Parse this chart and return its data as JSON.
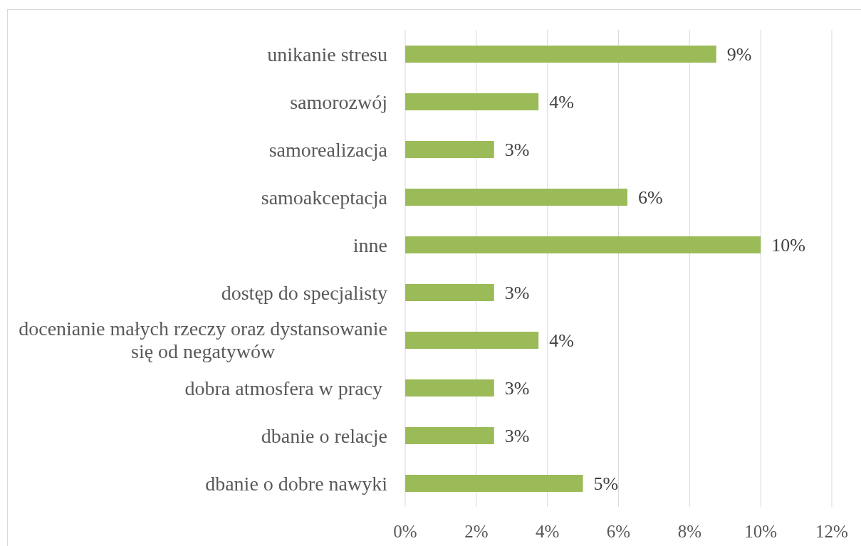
{
  "chart_data": {
    "type": "bar",
    "orientation": "horizontal",
    "categories": [
      "unikanie stresu",
      "samorozwój",
      "samorealizacja",
      "samoakceptacja",
      "inne",
      "dostęp do specjalisty",
      "docenianie małych rzeczy oraz dystansowanie się od negatywów",
      "dobra atmosfera w pracy ",
      "dbanie o relacje",
      "dbanie o dobre nawyki"
    ],
    "values": [
      8.75,
      3.75,
      2.5,
      6.25,
      10,
      2.5,
      3.75,
      2.5,
      2.5,
      5
    ],
    "value_labels": [
      "9%",
      "4%",
      "3%",
      "6%",
      "10%",
      "3%",
      "4%",
      "3%",
      "3%",
      "5%"
    ],
    "color": "#9bbb59",
    "xlim": [
      0,
      12
    ],
    "xticks": [
      {
        "value": 0,
        "label": "0%"
      },
      {
        "value": 2,
        "label": "2%"
      },
      {
        "value": 4,
        "label": "4%"
      },
      {
        "value": 6,
        "label": "6%"
      },
      {
        "value": 8,
        "label": "8%"
      },
      {
        "value": 10,
        "label": "10%"
      },
      {
        "value": 12,
        "label": "12%"
      }
    ],
    "grid": "x"
  }
}
